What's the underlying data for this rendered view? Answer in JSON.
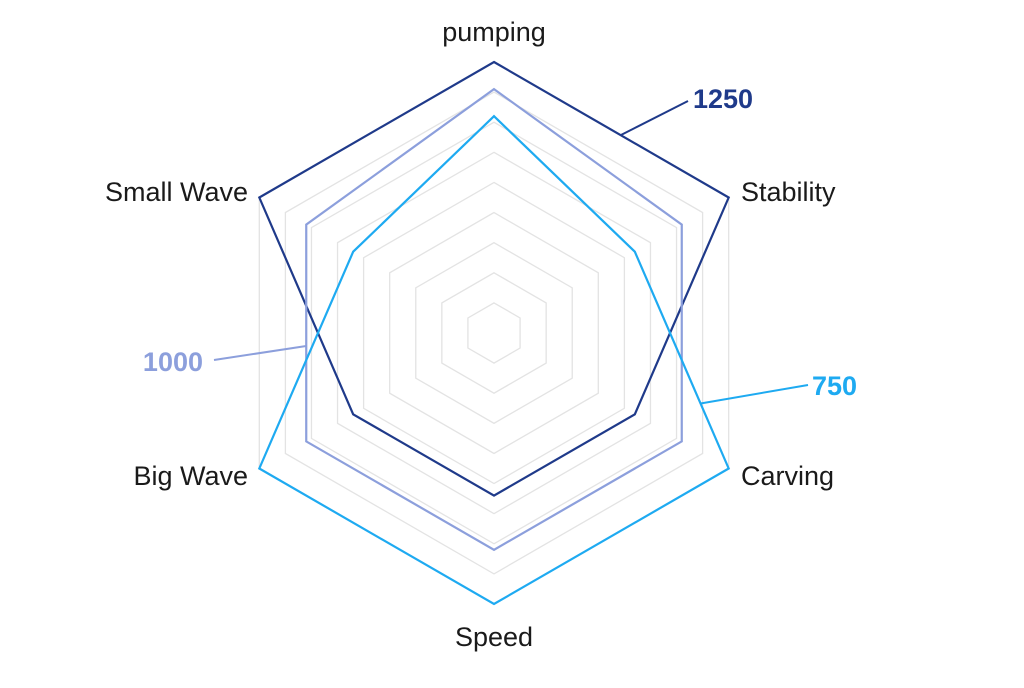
{
  "chart_data": {
    "type": "radar",
    "axes": [
      "pumping",
      "Stability",
      "Carving",
      "Speed",
      "Big Wave",
      "Small Wave"
    ],
    "grid_levels": 9,
    "grid": true,
    "series": [
      {
        "name": "1250",
        "color": "#1f3a8a",
        "values": [
          1.0,
          1.0,
          0.6,
          0.6,
          0.6,
          1.0
        ]
      },
      {
        "name": "1000",
        "color": "#8c9fdc",
        "values": [
          0.9,
          0.8,
          0.8,
          0.8,
          0.8,
          0.8
        ]
      },
      {
        "name": "750",
        "color": "#1eaaf1",
        "values": [
          0.8,
          0.6,
          1.0,
          1.0,
          1.0,
          0.6
        ]
      }
    ]
  }
}
